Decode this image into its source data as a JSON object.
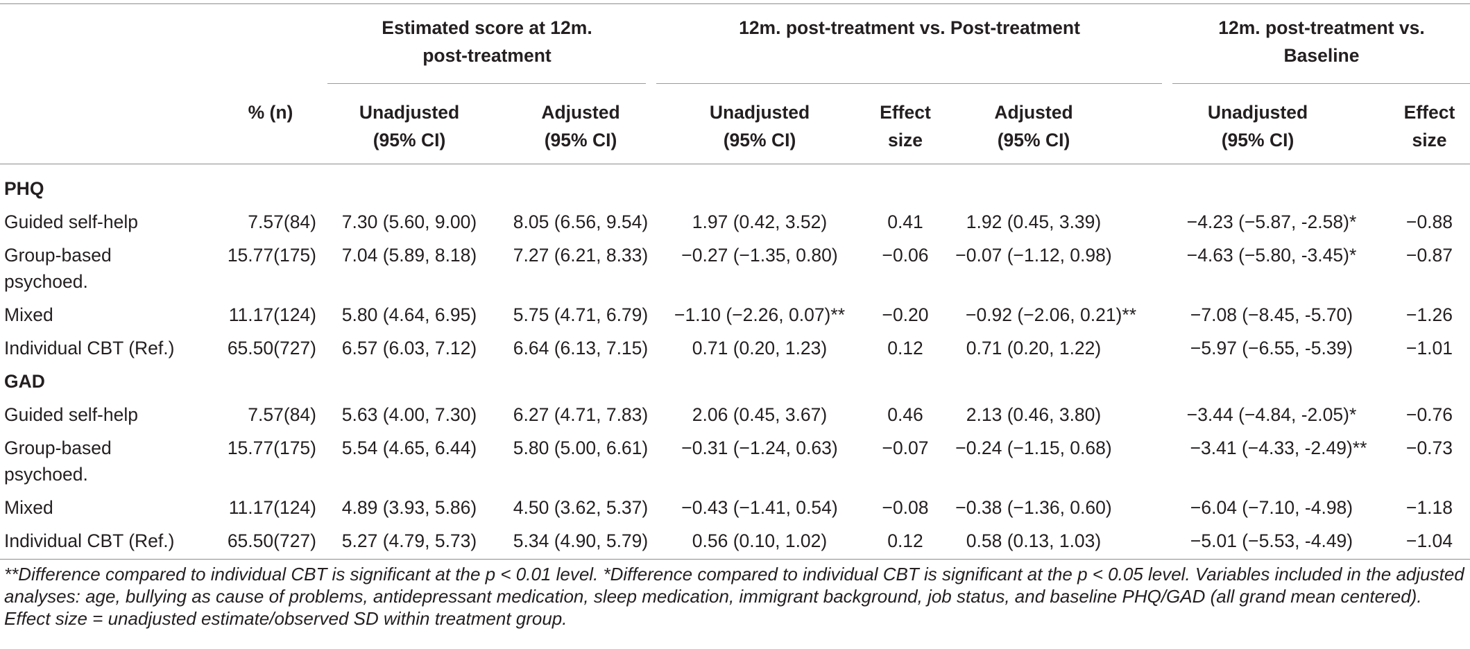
{
  "header": {
    "pct_n": "% (n)",
    "group1": [
      "Estimated score at 12m.",
      "post-treatment"
    ],
    "group2": "12m. post-treatment vs. Post-treatment",
    "group3": [
      "12m. post-treatment vs.",
      "Baseline"
    ],
    "unadjusted": [
      "Unadjusted",
      "(95% CI)"
    ],
    "adjusted": [
      "Adjusted",
      "(95% CI)"
    ],
    "effect": [
      "Effect",
      "size"
    ]
  },
  "sections": [
    {
      "label": "PHQ",
      "rows": [
        {
          "name": [
            "Guided self-help"
          ],
          "pct": "7.57(84)",
          "est_unadj": "7.30 (5.60, 9.00)",
          "est_adj": "8.05 (6.56, 9.54)",
          "post_unadj": "1.97 (0.42, 3.52)",
          "post_es": "0.41",
          "post_adj": "1.92 (0.45, 3.39)",
          "base_unadj": "−4.23 (−5.87, -2.58)*",
          "base_es": "−0.88"
        },
        {
          "name": [
            "Group-based",
            "psychoed."
          ],
          "pct": "15.77(175)",
          "est_unadj": "7.04 (5.89, 8.18)",
          "est_adj": "7.27 (6.21, 8.33)",
          "post_unadj": "−0.27 (−1.35, 0.80)",
          "post_es": "−0.06",
          "post_adj": "−0.07 (−1.12, 0.98)",
          "base_unadj": "−4.63 (−5.80, -3.45)*",
          "base_es": "−0.87"
        },
        {
          "name": [
            "Mixed"
          ],
          "pct": "11.17(124)",
          "est_unadj": "5.80 (4.64, 6.95)",
          "est_adj": "5.75 (4.71, 6.79)",
          "post_unadj": "−1.10 (−2.26, 0.07)**",
          "post_es": "−0.20",
          "post_adj": "−0.92 (−2.06, 0.21)**",
          "base_unadj": "−7.08 (−8.45, -5.70)",
          "base_es": "−1.26"
        },
        {
          "name": [
            "Individual CBT (Ref.)"
          ],
          "pct": "65.50(727)",
          "est_unadj": "6.57 (6.03, 7.12)",
          "est_adj": "6.64 (6.13, 7.15)",
          "post_unadj": "0.71 (0.20, 1.23)",
          "post_es": "0.12",
          "post_adj": "0.71 (0.20, 1.22)",
          "base_unadj": "−5.97 (−6.55, -5.39)",
          "base_es": "−1.01"
        }
      ]
    },
    {
      "label": "GAD",
      "rows": [
        {
          "name": [
            "Guided self-help"
          ],
          "pct": "7.57(84)",
          "est_unadj": "5.63 (4.00, 7.30)",
          "est_adj": "6.27 (4.71, 7.83)",
          "post_unadj": "2.06 (0.45, 3.67)",
          "post_es": "0.46",
          "post_adj": "2.13 (0.46, 3.80)",
          "base_unadj": "−3.44 (−4.84, -2.05)*",
          "base_es": "−0.76"
        },
        {
          "name": [
            "Group-based",
            "psychoed."
          ],
          "pct": "15.77(175)",
          "est_unadj": "5.54 (4.65, 6.44)",
          "est_adj": "5.80 (5.00, 6.61)",
          "post_unadj": "−0.31 (−1.24, 0.63)",
          "post_es": "−0.07",
          "post_adj": "−0.24 (−1.15, 0.68)",
          "base_unadj": "−3.41 (−4.33, -2.49)**",
          "base_es": "−0.73"
        },
        {
          "name": [
            "Mixed"
          ],
          "pct": "11.17(124)",
          "est_unadj": "4.89 (3.93, 5.86)",
          "est_adj": "4.50 (3.62, 5.37)",
          "post_unadj": "−0.43 (−1.41, 0.54)",
          "post_es": "−0.08",
          "post_adj": "−0.38 (−1.36, 0.60)",
          "base_unadj": "−6.04 (−7.10, -4.98)",
          "base_es": "−1.18"
        },
        {
          "name": [
            "Individual CBT (Ref.)"
          ],
          "pct": "65.50(727)",
          "est_unadj": "5.27 (4.79, 5.73)",
          "est_adj": "5.34 (4.90, 5.79)",
          "post_unadj": "0.56 (0.10, 1.02)",
          "post_es": "0.12",
          "post_adj": "0.58 (0.13, 1.03)",
          "base_unadj": "−5.01 (−5.53, -4.49)",
          "base_es": "−1.04"
        }
      ]
    }
  ],
  "footnote": "**Difference compared to individual CBT is significant at the p < 0.01 level. *Difference compared to individual CBT is significant at the p < 0.05 level. Variables included in the adjusted analyses: age, bullying as cause of problems, antidepressant medication, sleep medication, immigrant background, job status, and baseline PHQ/GAD (all grand mean centered). Effect size = unadjusted estimate/observed SD within treatment group."
}
